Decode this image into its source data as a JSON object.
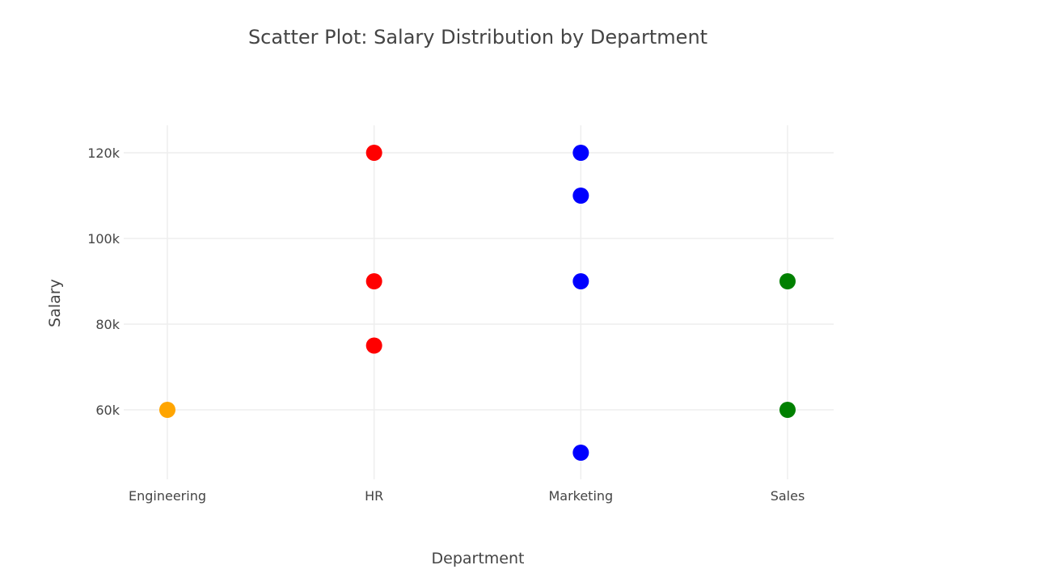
{
  "chart_data": {
    "type": "scatter",
    "title": "Scatter Plot: Salary Distribution by Department",
    "xlabel": "Department",
    "ylabel": "Salary",
    "categories": [
      "Engineering",
      "HR",
      "Marketing",
      "Sales"
    ],
    "yticks": [
      60000,
      80000,
      100000,
      120000
    ],
    "ytick_labels": [
      "60k",
      "80k",
      "100k",
      "120k"
    ],
    "ylim": [
      44000,
      126500
    ],
    "grid": true,
    "legend": null,
    "series": [
      {
        "name": "Engineering",
        "color": "#FFA500",
        "points": [
          {
            "x": "Engineering",
            "y": 60000
          }
        ]
      },
      {
        "name": "HR",
        "color": "#FF0000",
        "points": [
          {
            "x": "HR",
            "y": 120000
          },
          {
            "x": "HR",
            "y": 90000
          },
          {
            "x": "HR",
            "y": 75000
          }
        ]
      },
      {
        "name": "Marketing",
        "color": "#0000FF",
        "points": [
          {
            "x": "Marketing",
            "y": 120000
          },
          {
            "x": "Marketing",
            "y": 110000
          },
          {
            "x": "Marketing",
            "y": 90000
          },
          {
            "x": "Marketing",
            "y": 50000
          }
        ]
      },
      {
        "name": "Sales",
        "color": "#008000",
        "points": [
          {
            "x": "Sales",
            "y": 90000
          },
          {
            "x": "Sales",
            "y": 60000
          }
        ]
      }
    ]
  }
}
